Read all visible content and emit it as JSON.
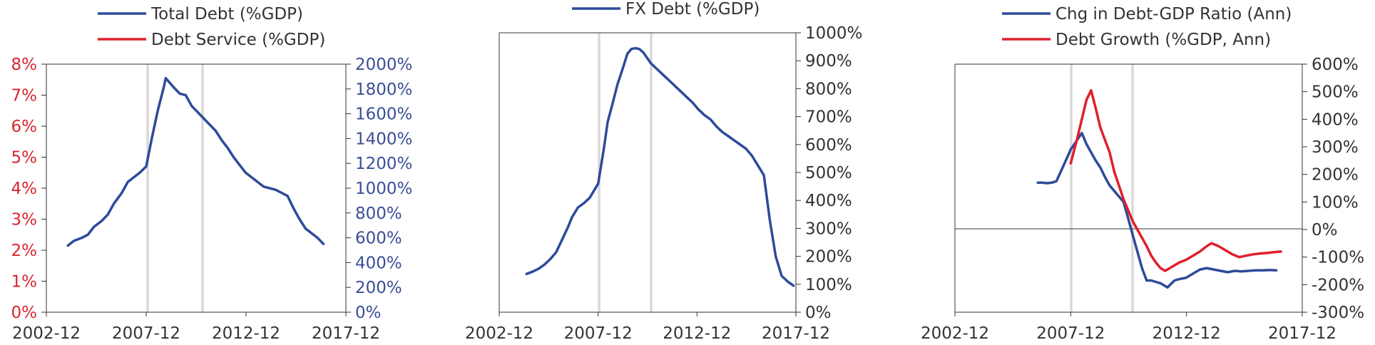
{
  "colors": {
    "blue": "#2e4a9a",
    "red": "#e11f2a",
    "blue_tick": "#3b4f96",
    "red_tick": "#d8262f",
    "axis": "#333333",
    "shade": "#d9d9d9"
  },
  "chart_data": [
    {
      "type": "line",
      "x_ticks": [
        "2002-12",
        "2007-12",
        "2012-12",
        "2017-12"
      ],
      "xlim": [
        2002.92,
        2017.92
      ],
      "vertical_markers": [
        2007.92,
        2010.67
      ],
      "left_axis": {
        "ylim": [
          0,
          8
        ],
        "ticks": [
          "0%",
          "1%",
          "2%",
          "3%",
          "4%",
          "5%",
          "6%",
          "7%",
          "8%"
        ]
      },
      "right_axis": {
        "ylim": [
          0,
          2000
        ],
        "ticks": [
          "0%",
          "200%",
          "400%",
          "600%",
          "800%",
          "1000%",
          "1200%",
          "1400%",
          "1600%",
          "1800%",
          "2000%"
        ]
      },
      "series": [
        {
          "name": "Total Debt (%GDP)",
          "color": "blue",
          "axis": "left",
          "x": [
            2004.0,
            2004.3,
            2004.7,
            2005.0,
            2005.3,
            2005.7,
            2006.0,
            2006.3,
            2006.7,
            2007.0,
            2007.3,
            2007.6,
            2007.92,
            2008.2,
            2008.5,
            2008.8,
            2008.9,
            2009.1,
            2009.3,
            2009.6,
            2009.9,
            2010.2,
            2010.5,
            2010.8,
            2011.1,
            2011.4,
            2011.7,
            2012.0,
            2012.3,
            2012.6,
            2012.9,
            2013.2,
            2013.5,
            2013.8,
            2014.1,
            2014.4,
            2014.7,
            2015.0,
            2015.3,
            2015.6,
            2015.9,
            2016.2,
            2016.5,
            2016.8
          ],
          "y": [
            2.15,
            2.3,
            2.4,
            2.5,
            2.75,
            2.95,
            3.15,
            3.5,
            3.85,
            4.2,
            4.35,
            4.5,
            4.7,
            5.6,
            6.5,
            7.25,
            7.55,
            7.4,
            7.25,
            7.05,
            7.0,
            6.65,
            6.45,
            6.25,
            6.05,
            5.85,
            5.55,
            5.3,
            5.0,
            4.75,
            4.5,
            4.35,
            4.2,
            4.05,
            4.0,
            3.95,
            3.85,
            3.75,
            3.35,
            3.0,
            2.7,
            2.55,
            2.4,
            2.2
          ]
        },
        {
          "name": "Debt Service (%GDP)",
          "color": "red",
          "axis": "left",
          "x": [],
          "y": []
        }
      ]
    },
    {
      "type": "line",
      "x_ticks": [
        "2002-12",
        "2007-12",
        "2012-12",
        "2017-12"
      ],
      "xlim": [
        2002.92,
        2017.92
      ],
      "vertical_markers": [
        2007.92,
        2010.5
      ],
      "right_axis": {
        "ylim": [
          0,
          1000
        ],
        "ticks": [
          "0%",
          "100%",
          "200%",
          "300%",
          "400%",
          "500%",
          "600%",
          "700%",
          "800%",
          "900%",
          "1000%"
        ]
      },
      "series": [
        {
          "name": "FX Debt (%GDP)",
          "color": "blue",
          "axis": "right",
          "x": [
            2004.3,
            2004.6,
            2004.9,
            2005.2,
            2005.5,
            2005.8,
            2006.1,
            2006.4,
            2006.6,
            2006.9,
            2007.2,
            2007.5,
            2007.92,
            2008.2,
            2008.4,
            2008.7,
            2008.9,
            2009.2,
            2009.4,
            2009.6,
            2009.8,
            2010.0,
            2010.2,
            2010.4,
            2010.6,
            2010.9,
            2011.2,
            2011.5,
            2011.8,
            2012.1,
            2012.4,
            2012.7,
            2013.0,
            2013.3,
            2013.6,
            2013.9,
            2014.2,
            2014.5,
            2014.8,
            2015.1,
            2015.4,
            2015.7,
            2016.0,
            2016.3,
            2016.6,
            2016.9,
            2017.2,
            2017.5,
            2017.8
          ],
          "y": [
            137,
            145,
            155,
            170,
            190,
            215,
            260,
            305,
            340,
            375,
            390,
            410,
            460,
            580,
            680,
            760,
            815,
            880,
            925,
            942,
            945,
            942,
            930,
            910,
            890,
            870,
            850,
            830,
            810,
            790,
            770,
            750,
            725,
            705,
            690,
            665,
            645,
            630,
            615,
            600,
            585,
            560,
            525,
            490,
            330,
            200,
            130,
            110,
            95
          ]
        }
      ]
    },
    {
      "type": "line",
      "x_ticks": [
        "2002-12",
        "2007-12",
        "2012-12",
        "2017-12"
      ],
      "xlim": [
        2002.92,
        2017.92
      ],
      "vertical_markers": [
        2007.92,
        2010.67
      ],
      "right_axis": {
        "ylim": [
          -300,
          600
        ],
        "ticks": [
          "-300%",
          "-200%",
          "-100%",
          "0%",
          "100%",
          "200%",
          "300%",
          "400%",
          "500%",
          "600%"
        ]
      },
      "series": [
        {
          "name": "Chg in Debt-GDP Ratio (Ann)",
          "color": "blue",
          "axis": "right",
          "x": [
            2006.5,
            2006.7,
            2006.9,
            2007.1,
            2007.3,
            2007.6,
            2007.92,
            2008.2,
            2008.4,
            2008.6,
            2008.8,
            2009.0,
            2009.2,
            2009.4,
            2009.6,
            2009.8,
            2010.0,
            2010.2,
            2010.4,
            2010.6,
            2010.8,
            2011.0,
            2011.2,
            2011.4,
            2011.6,
            2011.8,
            2012.1,
            2012.4,
            2012.6,
            2012.9,
            2013.2,
            2013.5,
            2013.8,
            2014.1,
            2014.4,
            2014.7,
            2015.0,
            2015.3,
            2015.6,
            2015.9,
            2016.2,
            2016.5,
            2016.8
          ],
          "y": [
            170,
            170,
            168,
            170,
            175,
            230,
            290,
            325,
            350,
            310,
            280,
            250,
            225,
            190,
            160,
            140,
            120,
            100,
            40,
            -20,
            -80,
            -140,
            -185,
            -185,
            -190,
            -195,
            -210,
            -185,
            -180,
            -175,
            -160,
            -145,
            -140,
            -145,
            -150,
            -155,
            -150,
            -152,
            -150,
            -148,
            -148,
            -147,
            -148
          ]
        },
        {
          "name": "Debt Growth (%GDP, Ann)",
          "color": "red",
          "axis": "right",
          "x": [
            2007.92,
            2008.2,
            2008.4,
            2008.6,
            2008.8,
            2009.0,
            2009.2,
            2009.4,
            2009.6,
            2009.8,
            2010.0,
            2010.2,
            2010.4,
            2010.6,
            2010.8,
            2011.0,
            2011.2,
            2011.4,
            2011.6,
            2011.8,
            2012.0,
            2012.2,
            2012.4,
            2012.6,
            2012.9,
            2013.2,
            2013.5,
            2013.8,
            2014.0,
            2014.3,
            2014.6,
            2014.9,
            2015.2,
            2015.5,
            2015.8,
            2016.1,
            2016.4,
            2016.7,
            2017.0
          ],
          "y": [
            240,
            330,
            400,
            470,
            505,
            440,
            370,
            325,
            280,
            210,
            160,
            110,
            70,
            30,
            0,
            -30,
            -60,
            -95,
            -120,
            -140,
            -150,
            -140,
            -130,
            -120,
            -110,
            -95,
            -80,
            -60,
            -50,
            -60,
            -75,
            -90,
            -100,
            -95,
            -90,
            -87,
            -85,
            -82,
            -80
          ]
        }
      ]
    }
  ],
  "panels": [
    {
      "legend": [
        "Total Debt (%GDP)",
        "Debt Service (%GDP)"
      ]
    },
    {
      "legend": [
        "FX Debt (%GDP)"
      ]
    },
    {
      "legend": [
        "Chg in Debt-GDP Ratio (Ann)",
        "Debt Growth (%GDP, Ann)"
      ]
    }
  ]
}
